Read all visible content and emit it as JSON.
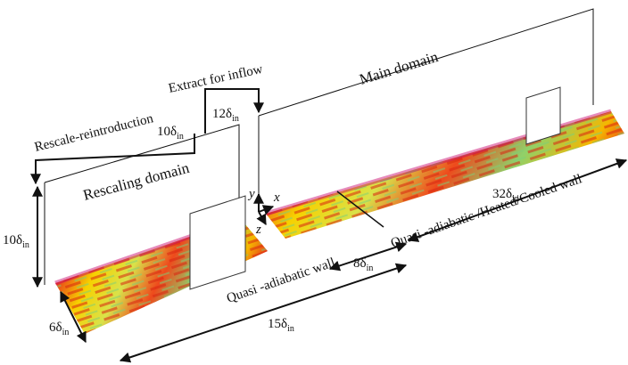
{
  "labels": {
    "extract": "Extract for inflow",
    "rescale": "Rescale-reintroduction",
    "main_domain": "Main domain",
    "rescaling_domain": "Rescaling domain",
    "wall_rescaling": "Quasi -adiabatic wall",
    "wall_main": "Quasi -adiabatic /Heated/Cooled wall",
    "axis_y": "y",
    "axis_x": "x",
    "axis_z": "z"
  },
  "dimensions": {
    "recycle_10": {
      "main": "10δ",
      "sub": "in"
    },
    "recycle_12": {
      "main": "12δ",
      "sub": "in"
    },
    "height": {
      "main": "10δ",
      "sub": "in"
    },
    "width": {
      "main": "6δ",
      "sub": "in"
    },
    "rescaling_length": {
      "main": "15δ",
      "sub": "in"
    },
    "gap": {
      "main": "8δ",
      "sub": "in"
    },
    "main_length": {
      "main": "32δ",
      "sub": "in"
    }
  }
}
